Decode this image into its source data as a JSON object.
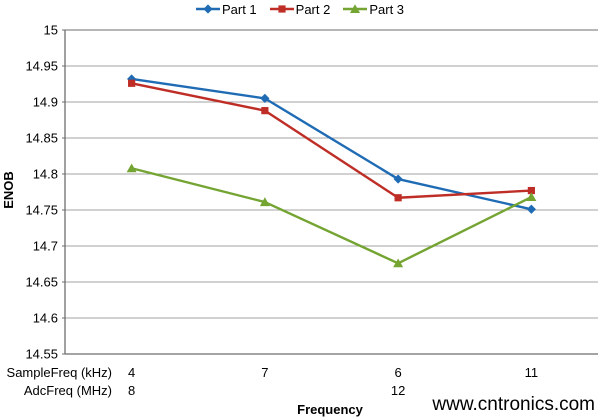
{
  "chart_data": {
    "type": "line",
    "title": "",
    "legend_position": "top",
    "grid": true,
    "x_axis": {
      "title": "Frequency",
      "rows": [
        {
          "label": "SampleFreq (kHz)",
          "values": [
            "4",
            "7",
            "6",
            "11"
          ]
        },
        {
          "label": "AdcFreq (MHz)",
          "values": [
            "8",
            "",
            "12",
            ""
          ]
        }
      ]
    },
    "y_axis": {
      "title": "ENOB",
      "min": 14.55,
      "max": 15,
      "step": 0.05,
      "tick_labels": [
        "15",
        "14.95",
        "14.9",
        "14.85",
        "14.8",
        "14.75",
        "14.7",
        "14.65",
        "14.6",
        "14.55"
      ]
    },
    "series": [
      {
        "name": "Part 1",
        "marker": "diamond",
        "color": "#1F6CB5",
        "values": [
          14.932,
          14.905,
          14.793,
          14.751
        ]
      },
      {
        "name": "Part 2",
        "marker": "square",
        "color": "#BE2E26",
        "values": [
          14.926,
          14.888,
          14.767,
          14.777
        ]
      },
      {
        "name": "Part 3",
        "marker": "triangle",
        "color": "#74A432",
        "values": [
          14.808,
          14.761,
          14.676,
          14.768
        ]
      }
    ]
  },
  "styles": {
    "gridline_color": "#A3A3A3",
    "axis_color": "#6E6E6E",
    "text_color": "#000000",
    "background": "#FFFFFF"
  },
  "watermark": {
    "text": "www.cntronics.com",
    "color": "#AEDC9E"
  }
}
